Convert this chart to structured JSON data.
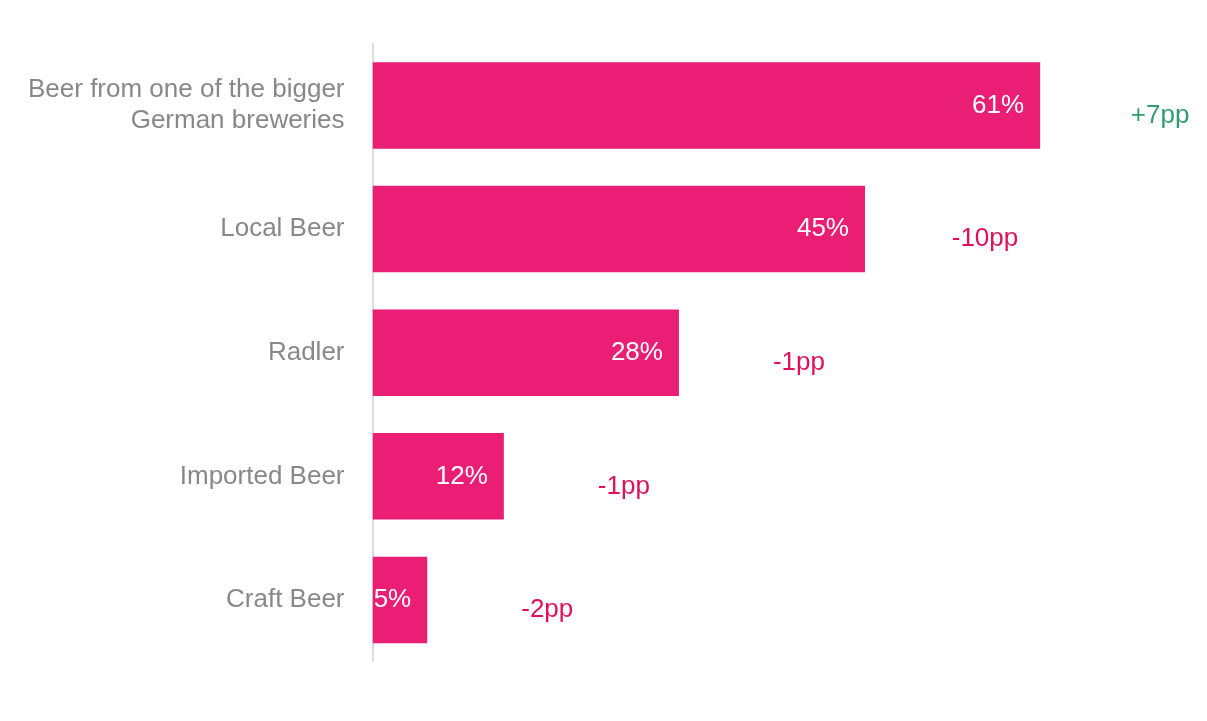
{
  "chart_data": {
    "type": "bar",
    "orientation": "horizontal",
    "categories": [
      "Beer from one of the bigger German breweries",
      "Local Beer",
      "Radler",
      "Imported Beer",
      "Craft Beer"
    ],
    "values": [
      61,
      45,
      28,
      12,
      5
    ],
    "color": "#e91e74",
    "value_labels": [
      "61%",
      "45%",
      "28%",
      "12%",
      "5%"
    ],
    "tick_labels": "y",
    "legend": false,
    "annotations": [
      "+7pp",
      "-10pp",
      "-1pp",
      "-1pp",
      "-2pp"
    ]
  }
}
